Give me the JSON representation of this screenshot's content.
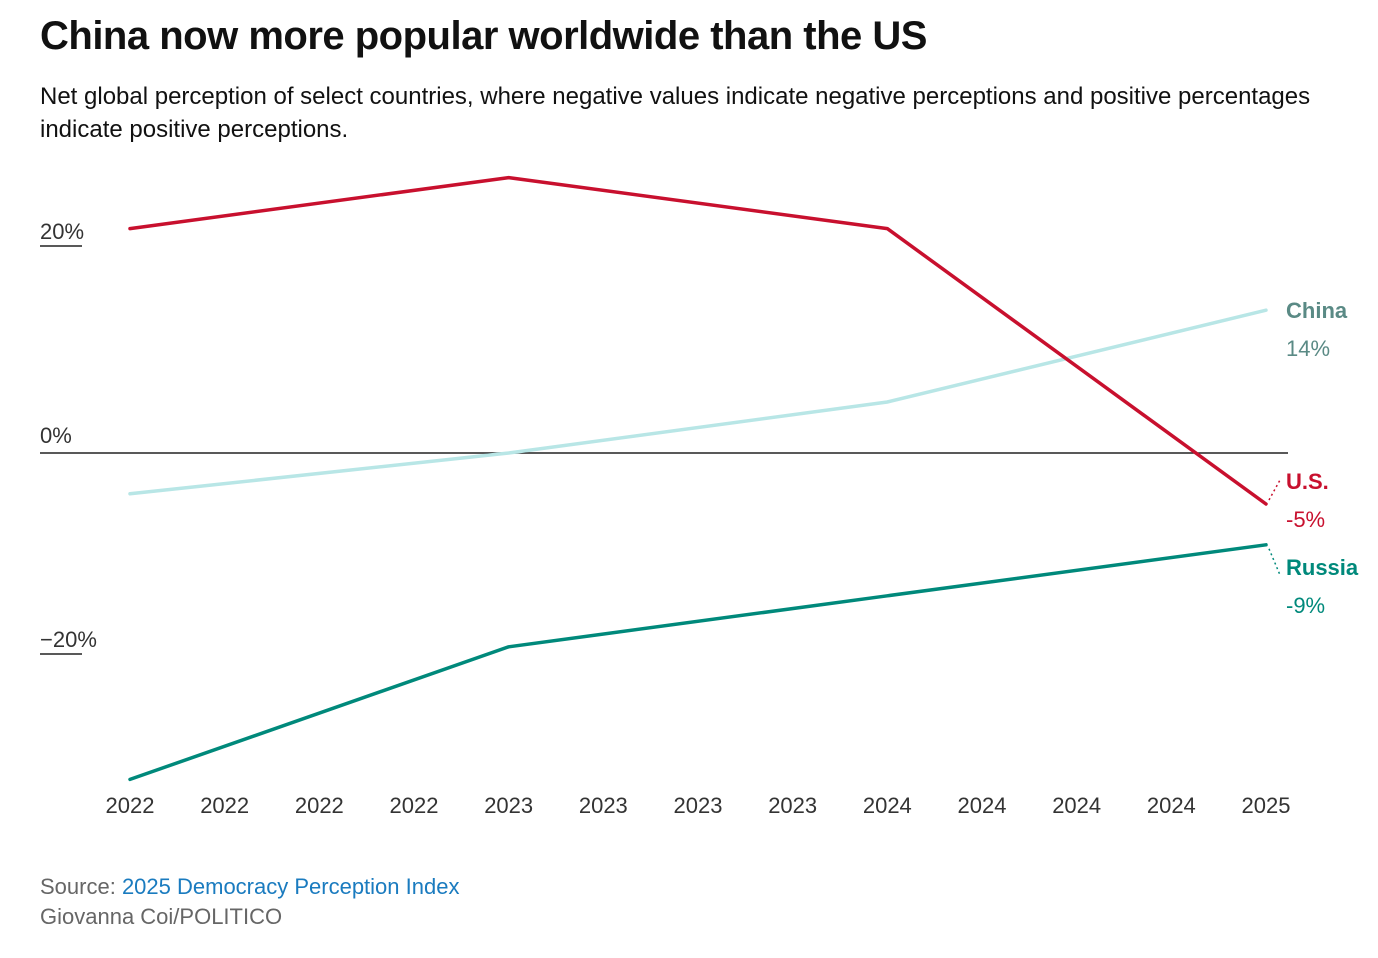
{
  "title": "China now more popular worldwide than the US",
  "subtitle": "Net global perception of select countries, where negative values indicate negative perceptions and positive percentages indicate positive perceptions.",
  "footer": {
    "source_prefix": "Source: ",
    "source_link": "2025 Democracy Perception Index",
    "credit": "Giovanna Coi/POLITICO"
  },
  "chart_data": {
    "type": "line",
    "x": [
      "2022",
      "2022",
      "2022",
      "2022",
      "2023",
      "2023",
      "2023",
      "2023",
      "2024",
      "2024",
      "2024",
      "2024",
      "2025"
    ],
    "y_ticks": [
      {
        "value": 20,
        "label": "20%"
      },
      {
        "value": 0,
        "label": "0%"
      },
      {
        "value": -20,
        "label": "−20%"
      }
    ],
    "ylim": [
      -33,
      27
    ],
    "series": [
      {
        "name": "U.S.",
        "end_label": "-5%",
        "color": "#c8102e",
        "points": [
          {
            "x_index": 0,
            "y": 22
          },
          {
            "x_index": 4,
            "y": 27
          },
          {
            "x_index": 8,
            "y": 22
          },
          {
            "x_index": 12,
            "y": -5
          }
        ]
      },
      {
        "name": "China",
        "end_label": "14%",
        "color": "#b8e6e6",
        "label_color": "#5a8a85",
        "points": [
          {
            "x_index": 0,
            "y": -4
          },
          {
            "x_index": 4,
            "y": 0
          },
          {
            "x_index": 8,
            "y": 5
          },
          {
            "x_index": 12,
            "y": 14
          }
        ]
      },
      {
        "name": "Russia",
        "end_label": "-9%",
        "color": "#00897b",
        "points": [
          {
            "x_index": 0,
            "y": -32
          },
          {
            "x_index": 4,
            "y": -19
          },
          {
            "x_index": 8,
            "y": -14
          },
          {
            "x_index": 12,
            "y": -9
          }
        ]
      }
    ]
  }
}
